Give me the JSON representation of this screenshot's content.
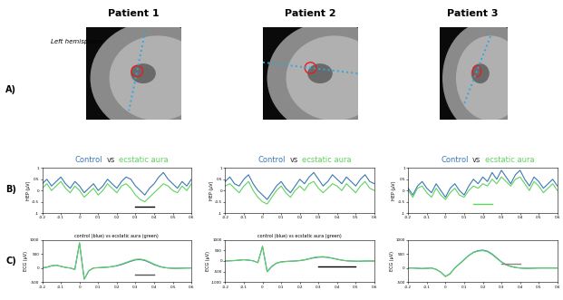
{
  "figure": {
    "patients": [
      "Patient 1",
      "Patient 2",
      "Patient 3"
    ],
    "panel_labels": [
      "A)",
      "B)",
      "C)"
    ],
    "image_note": "Left hemisphere"
  },
  "chart_data": [
    {
      "type": "line",
      "title_parts": [
        {
          "text": "Control",
          "color": "#3c78b4"
        },
        {
          "text": "vs",
          "color": "#333333"
        },
        {
          "text": "ecstatic aura",
          "color": "#5fd35f"
        }
      ],
      "ylabel": "HEP (µV)",
      "x": [
        -0.2,
        -0.175,
        -0.15,
        -0.125,
        -0.1,
        -0.075,
        -0.05,
        -0.025,
        0,
        0.025,
        0.05,
        0.075,
        0.1,
        0.125,
        0.15,
        0.175,
        0.2,
        0.225,
        0.25,
        0.275,
        0.3,
        0.325,
        0.35,
        0.375,
        0.4,
        0.425,
        0.45,
        0.475,
        0.5,
        0.525,
        0.55,
        0.575,
        0.6
      ],
      "xlim": [
        -0.2,
        0.6
      ],
      "xticks": [
        -0.2,
        -0.1,
        0,
        0.1,
        0.2,
        0.3,
        0.4,
        0.5,
        0.6
      ],
      "ylim": [
        -1,
        1
      ],
      "yticks": [
        -1,
        -0.5,
        0,
        0.5,
        1
      ],
      "series": [
        {
          "color": "#3c78b4",
          "values": [
            0.3,
            0.5,
            0.2,
            0.4,
            0.6,
            0.3,
            0.1,
            0.4,
            0.2,
            -0.1,
            0.1,
            0.3,
            0.0,
            0.2,
            0.5,
            0.3,
            0.1,
            0.4,
            0.6,
            0.5,
            0.2,
            0.0,
            -0.2,
            0.1,
            0.3,
            0.6,
            0.8,
            0.5,
            0.3,
            0.1,
            0.4,
            0.2,
            0.5
          ]
        },
        {
          "color": "#5fd35f",
          "values": [
            0.1,
            0.3,
            0.0,
            0.2,
            0.4,
            0.1,
            -0.1,
            0.2,
            0.0,
            -0.3,
            -0.1,
            0.1,
            -0.2,
            0.0,
            0.3,
            0.1,
            -0.1,
            0.2,
            0.3,
            0.1,
            -0.2,
            -0.4,
            -0.5,
            -0.3,
            -0.1,
            0.1,
            0.3,
            0.2,
            0.0,
            -0.1,
            0.2,
            0.0,
            0.3
          ]
        }
      ],
      "significance_bar": {
        "x": [
          0.3,
          0.4
        ],
        "y": -0.7,
        "color": "#000000"
      }
    },
    {
      "type": "line",
      "title_parts": [
        {
          "text": "Control",
          "color": "#3c78b4"
        },
        {
          "text": "vs",
          "color": "#333333"
        },
        {
          "text": "ecstatic aura",
          "color": "#5fd35f"
        }
      ],
      "ylabel": "HEP (µV)",
      "x": [
        -0.2,
        -0.175,
        -0.15,
        -0.125,
        -0.1,
        -0.075,
        -0.05,
        -0.025,
        0,
        0.025,
        0.05,
        0.075,
        0.1,
        0.125,
        0.15,
        0.175,
        0.2,
        0.225,
        0.25,
        0.275,
        0.3,
        0.325,
        0.35,
        0.375,
        0.4,
        0.425,
        0.45,
        0.475,
        0.5,
        0.525,
        0.55,
        0.575,
        0.6
      ],
      "xlim": [
        -0.2,
        0.6
      ],
      "xticks": [
        -0.2,
        -0.1,
        0,
        0.1,
        0.2,
        0.3,
        0.4,
        0.5,
        0.6
      ],
      "ylim": [
        -1,
        1
      ],
      "yticks": [
        -1,
        -0.5,
        0,
        0.5,
        1
      ],
      "series": [
        {
          "color": "#3c78b4",
          "values": [
            0.4,
            0.6,
            0.3,
            0.2,
            0.5,
            0.7,
            0.3,
            0.0,
            -0.2,
            -0.4,
            -0.1,
            0.2,
            0.4,
            0.1,
            -0.1,
            0.2,
            0.5,
            0.3,
            0.6,
            0.8,
            0.5,
            0.2,
            0.4,
            0.7,
            0.5,
            0.3,
            0.6,
            0.4,
            0.2,
            0.5,
            0.7,
            0.4,
            0.3
          ]
        },
        {
          "color": "#5fd35f",
          "values": [
            0.2,
            0.3,
            0.1,
            -0.1,
            0.2,
            0.4,
            0.0,
            -0.3,
            -0.5,
            -0.6,
            -0.3,
            0.0,
            0.2,
            -0.1,
            -0.3,
            0.0,
            0.2,
            0.0,
            0.3,
            0.4,
            0.1,
            -0.1,
            0.1,
            0.3,
            0.2,
            0.0,
            0.3,
            0.1,
            -0.1,
            0.2,
            0.4,
            0.1,
            0.0
          ]
        }
      ]
    },
    {
      "type": "line",
      "title_parts": [
        {
          "text": "Control",
          "color": "#3c78b4"
        },
        {
          "text": "vs",
          "color": "#333333"
        },
        {
          "text": "ecstatic aura",
          "color": "#5fd35f"
        }
      ],
      "ylabel": "HEP (µV)",
      "x": [
        -0.2,
        -0.175,
        -0.15,
        -0.125,
        -0.1,
        -0.075,
        -0.05,
        -0.025,
        0,
        0.025,
        0.05,
        0.075,
        0.1,
        0.125,
        0.15,
        0.175,
        0.2,
        0.225,
        0.25,
        0.275,
        0.3,
        0.325,
        0.35,
        0.375,
        0.4,
        0.425,
        0.45,
        0.475,
        0.5,
        0.525,
        0.55,
        0.575,
        0.6
      ],
      "xlim": [
        -0.2,
        0.6
      ],
      "xticks": [
        -0.2,
        -0.1,
        0,
        0.1,
        0.2,
        0.3,
        0.4,
        0.5,
        0.6
      ],
      "ylim": [
        -1,
        1
      ],
      "yticks": [
        -1,
        -0.5,
        0,
        0.5,
        1
      ],
      "series": [
        {
          "color": "#3c78b4",
          "values": [
            0.1,
            -0.2,
            0.2,
            0.4,
            0.1,
            -0.1,
            0.3,
            0.0,
            -0.3,
            0.1,
            0.3,
            0.0,
            -0.2,
            0.2,
            0.5,
            0.3,
            0.6,
            0.4,
            0.8,
            0.5,
            0.9,
            0.6,
            0.3,
            0.7,
            0.9,
            0.5,
            0.2,
            0.6,
            0.4,
            0.1,
            0.3,
            0.5,
            0.2
          ]
        },
        {
          "color": "#5fd35f",
          "values": [
            0.0,
            -0.3,
            0.1,
            0.2,
            -0.1,
            -0.3,
            0.1,
            -0.2,
            -0.4,
            -0.1,
            0.1,
            -0.2,
            -0.3,
            0.0,
            0.2,
            0.1,
            0.3,
            0.2,
            0.5,
            0.3,
            0.6,
            0.4,
            0.2,
            0.5,
            0.6,
            0.3,
            0.0,
            0.4,
            0.2,
            -0.1,
            0.1,
            0.3,
            0.0
          ]
        }
      ],
      "significance_bar": {
        "x": [
          0.15,
          0.25
        ],
        "y": -0.6,
        "color": "#5fd35f"
      }
    },
    {
      "type": "line",
      "title": "control (blue) vs ecstatic aura (green)",
      "ylabel": "ECG (µV)",
      "x": [
        -0.2,
        -0.175,
        -0.15,
        -0.125,
        -0.1,
        -0.075,
        -0.05,
        -0.025,
        0,
        0.025,
        0.05,
        0.075,
        0.1,
        0.125,
        0.15,
        0.175,
        0.2,
        0.225,
        0.25,
        0.275,
        0.3,
        0.325,
        0.35,
        0.375,
        0.4,
        0.425,
        0.45,
        0.475,
        0.5,
        0.525,
        0.55,
        0.575,
        0.6
      ],
      "xlim": [
        -0.2,
        0.6
      ],
      "xticks": [
        -0.2,
        -0.1,
        0,
        0.1,
        0.2,
        0.3,
        0.4,
        0.5,
        0.6
      ],
      "ylim": [
        -500,
        1000
      ],
      "yticks": [
        -500,
        0,
        500,
        1000
      ],
      "series": [
        {
          "color": "#3c78b4",
          "values": [
            0,
            30,
            80,
            100,
            60,
            20,
            0,
            -50,
            900,
            -400,
            -100,
            0,
            10,
            20,
            30,
            50,
            80,
            120,
            180,
            240,
            290,
            300,
            270,
            200,
            120,
            60,
            20,
            0,
            -10,
            -10,
            -5,
            0,
            0
          ]
        },
        {
          "color": "#5fd35f",
          "values": [
            0,
            30,
            80,
            100,
            60,
            20,
            0,
            -50,
            880,
            -380,
            -100,
            0,
            10,
            20,
            30,
            50,
            90,
            140,
            200,
            260,
            310,
            320,
            290,
            220,
            140,
            70,
            25,
            0,
            -10,
            -10,
            -5,
            0,
            0
          ]
        }
      ],
      "significance_bar": {
        "x": [
          0.3,
          0.4
        ],
        "y": -250,
        "color": "#555555"
      }
    },
    {
      "type": "line",
      "title": "control (blue) vs ecstatic aura (green)",
      "ylabel": "ECG (µV)",
      "x": [
        -0.2,
        -0.175,
        -0.15,
        -0.125,
        -0.1,
        -0.075,
        -0.05,
        -0.025,
        0,
        0.025,
        0.05,
        0.075,
        0.1,
        0.125,
        0.15,
        0.175,
        0.2,
        0.225,
        0.25,
        0.275,
        0.3,
        0.325,
        0.35,
        0.375,
        0.4,
        0.425,
        0.45,
        0.475,
        0.5,
        0.525,
        0.55,
        0.575,
        0.6
      ],
      "xlim": [
        -0.2,
        0.6
      ],
      "xticks": [
        -0.2,
        -0.1,
        0,
        0.1,
        0.2,
        0.3,
        0.4,
        0.5,
        0.6
      ],
      "ylim": [
        -1000,
        1000
      ],
      "yticks": [
        -1000,
        -500,
        0,
        500,
        1000
      ],
      "series": [
        {
          "color": "#3c78b4",
          "values": [
            0,
            10,
            20,
            40,
            60,
            40,
            10,
            -80,
            700,
            -500,
            -250,
            -100,
            -40,
            -20,
            -10,
            0,
            20,
            50,
            100,
            150,
            180,
            190,
            170,
            130,
            80,
            40,
            10,
            0,
            -10,
            -10,
            0,
            0,
            0
          ]
        },
        {
          "color": "#5fd35f",
          "values": [
            0,
            10,
            20,
            40,
            60,
            40,
            10,
            -80,
            680,
            -520,
            -270,
            -110,
            -50,
            -30,
            -10,
            0,
            20,
            60,
            110,
            170,
            200,
            210,
            180,
            140,
            90,
            40,
            10,
            0,
            -10,
            -10,
            0,
            0,
            0
          ]
        }
      ],
      "significance_bar": {
        "x": [
          0.3,
          0.5
        ],
        "y": -250,
        "color": "#000000"
      }
    },
    {
      "type": "line",
      "ylabel": "ECG (µV)",
      "x": [
        -0.2,
        -0.175,
        -0.15,
        -0.125,
        -0.1,
        -0.075,
        -0.05,
        -0.025,
        0,
        0.025,
        0.05,
        0.075,
        0.1,
        0.125,
        0.15,
        0.175,
        0.2,
        0.225,
        0.25,
        0.275,
        0.3,
        0.325,
        0.35,
        0.375,
        0.4,
        0.425,
        0.45,
        0.475,
        0.5,
        0.525,
        0.55,
        0.575,
        0.6
      ],
      "xlim": [
        -0.2,
        0.6
      ],
      "xticks": [
        -0.2,
        -0.1,
        0,
        0.1,
        0.2,
        0.3,
        0.4,
        0.5,
        0.6
      ],
      "ylim": [
        -500,
        1000
      ],
      "yticks": [
        -500,
        0,
        500,
        1000
      ],
      "series": [
        {
          "color": "#3c78b4",
          "values": [
            0,
            0,
            -10,
            -20,
            -10,
            0,
            -50,
            -150,
            -300,
            -200,
            0,
            150,
            300,
            450,
            560,
            620,
            640,
            600,
            500,
            360,
            220,
            120,
            60,
            20,
            0,
            -10,
            -10,
            -5,
            0,
            0,
            0,
            0,
            0
          ]
        },
        {
          "color": "#5fd35f",
          "values": [
            0,
            0,
            -10,
            -20,
            -10,
            0,
            -50,
            -150,
            -310,
            -210,
            0,
            140,
            290,
            440,
            550,
            600,
            620,
            580,
            480,
            340,
            210,
            110,
            50,
            15,
            0,
            -10,
            -10,
            -5,
            0,
            0,
            0,
            0,
            0
          ]
        }
      ],
      "significance_bar": {
        "x": [
          0.3,
          0.4
        ],
        "y": 150,
        "color": "#888888"
      }
    }
  ]
}
